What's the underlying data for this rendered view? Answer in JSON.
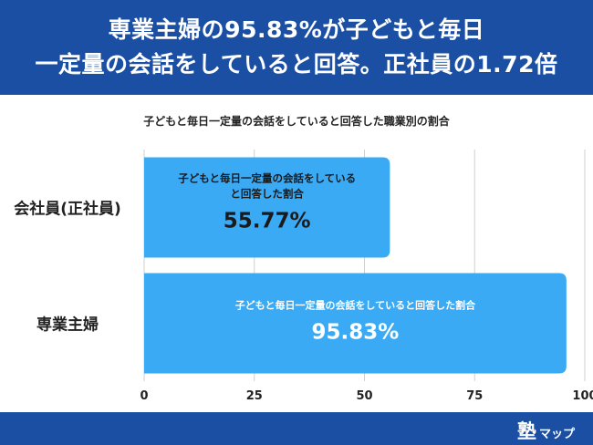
{
  "header": {
    "line1": "専業主婦の95.83%が子どもと毎日",
    "line2": "一定量の会話をしていると回答。正社員の1.72倍"
  },
  "footer": {
    "brand_main": "塾",
    "brand_sub": "マップ"
  },
  "colors": {
    "brand_blue": "#1b4fa3",
    "bar_blue": "#3aaaf5",
    "grid": "#cfcfcf"
  },
  "chart_data": {
    "type": "bar",
    "orientation": "horizontal",
    "title": "子どもと毎日一定量の会話をしていると回答した職業別の割合",
    "categories": [
      "会社員(正社員)",
      "専業主婦"
    ],
    "values": [
      55.77,
      95.83
    ],
    "bar_labels": [
      {
        "caption": "子どもと毎日一定量の会話をしている\nと回答した割合",
        "value": "55.77%"
      },
      {
        "caption": "子どもと毎日一定量の会話をしていると回答した割合",
        "value": "95.83%"
      }
    ],
    "xlim": [
      0,
      100
    ],
    "xticks": [
      0,
      25,
      50,
      75,
      100
    ],
    "grid": true
  }
}
